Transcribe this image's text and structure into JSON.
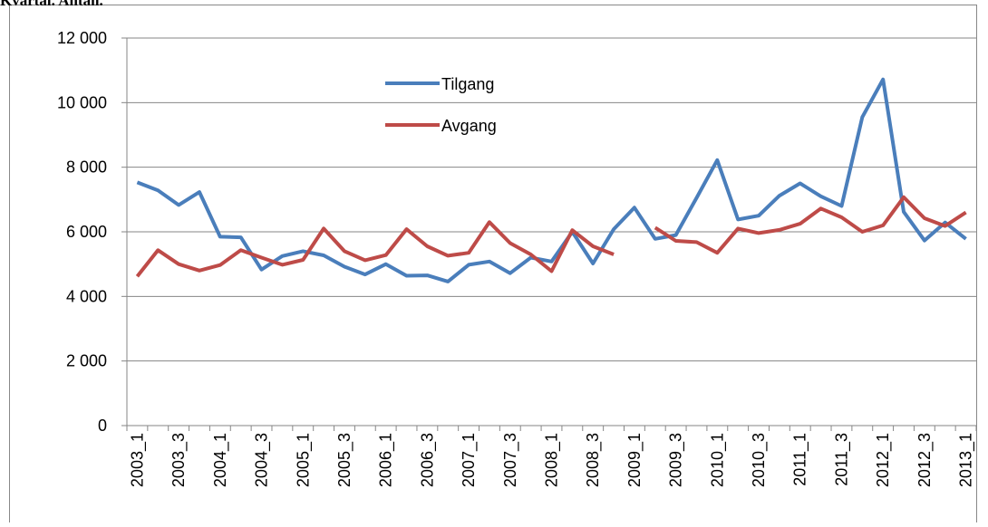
{
  "chart_data": {
    "type": "line",
    "title": "Kvartal. Antall.",
    "categories": [
      "2003_1",
      null,
      "2003_3",
      null,
      "2004_1",
      null,
      "2004_3",
      null,
      "2005_1",
      null,
      "2005_3",
      null,
      "2006_1",
      null,
      "2006_3",
      null,
      "2007_1",
      null,
      "2007_3",
      null,
      "2008_1",
      null,
      "2008_3",
      null,
      "2009_1",
      null,
      "2009_3",
      null,
      "2010_1",
      null,
      "2010_3",
      null,
      "2011_1",
      null,
      "2011_3",
      null,
      "2012_1",
      null,
      "2012_3",
      null,
      "2013_1"
    ],
    "series": [
      {
        "name": "Tilgang",
        "color": "#4a7ebb",
        "values": [
          7530,
          7280,
          6830,
          7230,
          5850,
          5830,
          4830,
          5250,
          5400,
          5270,
          4920,
          4680,
          5000,
          4640,
          4650,
          4460,
          4980,
          5080,
          4720,
          5200,
          5080,
          6000,
          5020,
          6080,
          6750,
          5780,
          5900,
          7050,
          8220,
          6380,
          6500,
          7120,
          7500,
          7100,
          6800,
          9550,
          10720,
          6620,
          5730,
          6290,
          5780
        ]
      },
      {
        "name": "Avgang",
        "color": "#be4b48",
        "values": [
          4620,
          5430,
          5000,
          4800,
          4970,
          5430,
          5200,
          4980,
          5130,
          6100,
          5400,
          5120,
          5280,
          6080,
          5550,
          5260,
          5350,
          6300,
          5650,
          5300,
          4780,
          6050,
          5550,
          5300,
          null,
          6130,
          5720,
          5680,
          5350,
          6100,
          5960,
          6060,
          6250,
          6720,
          6450,
          6000,
          6200,
          7070,
          6420,
          6180,
          6600
        ]
      }
    ],
    "ylim": [
      0,
      12000
    ],
    "yticks": [
      0,
      {
        "value": 2000,
        "label": "2 000"
      },
      {
        "value": 4000,
        "label": "4 000"
      },
      {
        "value": 6000,
        "label": "6 000"
      },
      {
        "value": 8000,
        "label": "8 000"
      },
      {
        "value": 10000,
        "label": "10 000"
      },
      {
        "value": 12000,
        "label": "12 000"
      }
    ],
    "grid": true,
    "legend": "top"
  }
}
